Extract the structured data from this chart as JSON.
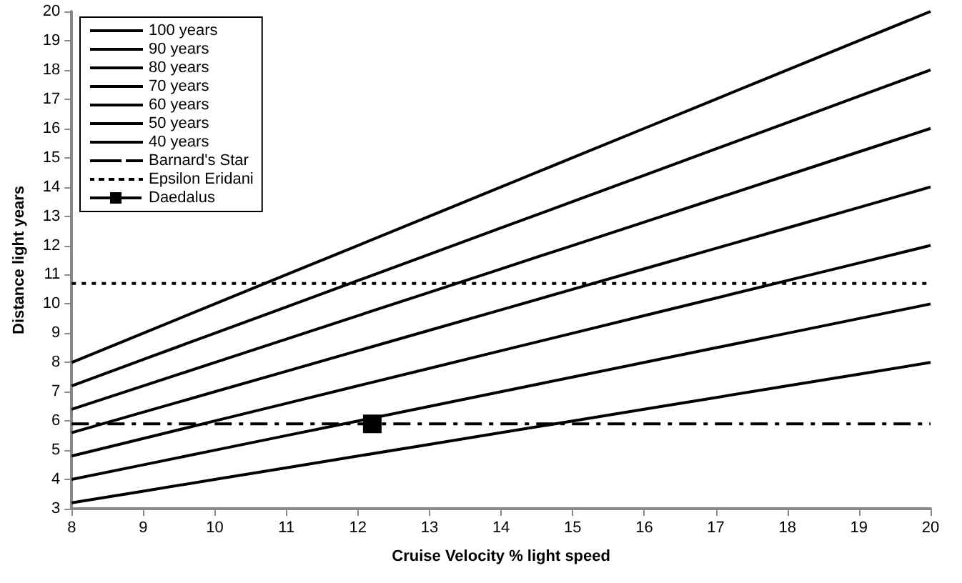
{
  "chart_data": {
    "type": "line",
    "xlabel": "Cruise Velocity % light speed",
    "ylabel": "Distance light years",
    "x": [
      8,
      9,
      10,
      11,
      12,
      13,
      14,
      15,
      16,
      17,
      18,
      19,
      20
    ],
    "xlim": [
      8,
      20
    ],
    "xticks": [
      8,
      9,
      10,
      11,
      12,
      13,
      14,
      15,
      16,
      17,
      18,
      19,
      20
    ],
    "ylim": [
      3,
      20
    ],
    "yticks": [
      3,
      4,
      5,
      6,
      7,
      8,
      9,
      10,
      11,
      12,
      13,
      14,
      15,
      16,
      17,
      18,
      19,
      20
    ],
    "grid": false,
    "legend": "top left",
    "marker": "none",
    "line_style": "solid",
    "series": [
      {
        "name": "100 years",
        "color": "#000000",
        "values": [
          8,
          9,
          10,
          11,
          12,
          13,
          14,
          15,
          16,
          17,
          18,
          19,
          20
        ]
      },
      {
        "name": "90 years",
        "color": "#000000",
        "values": [
          7.2,
          8.1,
          9,
          9.9,
          10.8,
          11.7,
          12.6,
          13.5,
          14.4,
          15.3,
          16.2,
          17.1,
          18
        ]
      },
      {
        "name": "80 years",
        "color": "#000000",
        "values": [
          6.4,
          7.2,
          8,
          8.8,
          9.6,
          10.4,
          11.2,
          12,
          12.8,
          13.6,
          14.4,
          15.2,
          16
        ]
      },
      {
        "name": "70 years",
        "color": "#000000",
        "values": [
          5.6,
          6.3,
          7,
          7.7,
          8.4,
          9.1,
          9.8,
          10.5,
          11.2,
          11.9,
          12.6,
          13.3,
          14
        ]
      },
      {
        "name": "60 years",
        "color": "#000000",
        "values": [
          4.8,
          5.4,
          6,
          6.6,
          7.2,
          7.8,
          8.4,
          9,
          9.6,
          10.2,
          10.8,
          11.4,
          12
        ]
      },
      {
        "name": "50 years",
        "color": "#000000",
        "values": [
          4,
          4.5,
          5,
          5.5,
          6,
          6.5,
          7,
          7.5,
          8,
          8.5,
          9,
          9.5,
          10
        ]
      },
      {
        "name": "40 years",
        "color": "#000000",
        "values": [
          3.2,
          3.6,
          4,
          4.4,
          4.8,
          5.2,
          5.6,
          6,
          6.4,
          6.8,
          7.2,
          7.6,
          8
        ]
      },
      {
        "name": "Barnard's Star",
        "color": "#000000",
        "x": [
          8,
          20
        ],
        "values": [
          5.9,
          5.9
        ],
        "line_style": "dashed"
      },
      {
        "name": "Epsilon Eridani",
        "color": "#000000",
        "x": [
          8,
          20
        ],
        "values": [
          10.7,
          10.7
        ],
        "line_style": "dotted"
      },
      {
        "name": "Daedalus",
        "color": "#000000",
        "x": [
          12.2
        ],
        "values": [
          5.9
        ],
        "marker": "square"
      }
    ]
  }
}
